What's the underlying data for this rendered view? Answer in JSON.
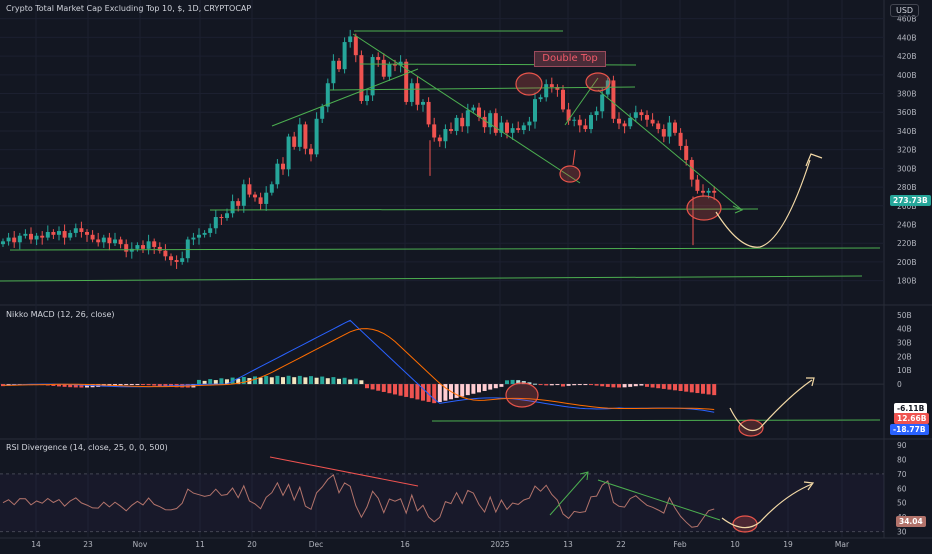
{
  "chart_title": "Crypto Total Market Cap Excluding Top 10, $, 1D, CRYPTOCAP",
  "currency": "USD",
  "annotation_text": "Double Top",
  "price_label": "273.73B",
  "colors": {
    "up": "#26a69a",
    "down": "#ef5350",
    "line": "#4caf50",
    "macd": "#2962ff",
    "signal": "#ff6d00",
    "rsi": "#b2736b",
    "bg": "#131722",
    "drawing": "#f3d9a6",
    "circle": "#e8544a"
  },
  "panes": {
    "macd_title": "Nikko MACD (12, 26, close)",
    "macd_labels": [
      "-6.11B",
      "12.66B",
      "-18.77B"
    ],
    "rsi_title": "RSI Divergence (14, close, 25, 0, 0, 500)",
    "rsi_label": "34.04"
  },
  "chart_data": {
    "type": "candlestick",
    "unit": "USD billions",
    "x_ticks": [
      "14",
      "23",
      "Nov",
      "11",
      "20",
      "Dec",
      "16",
      "2025",
      "13",
      "22",
      "Feb",
      "10",
      "19",
      "Mar"
    ],
    "y_ticks": [
      "460B",
      "440B",
      "420B",
      "400B",
      "380B",
      "360B",
      "340B",
      "320B",
      "300B",
      "280B",
      "260B",
      "240B",
      "220B",
      "200B",
      "180B"
    ],
    "ylim": [
      170,
      465
    ],
    "close": [
      222,
      226,
      221,
      228,
      230,
      224,
      228,
      226,
      232,
      229,
      233,
      226,
      231,
      236,
      232,
      229,
      224,
      221,
      226,
      220,
      224,
      219,
      211,
      214,
      218,
      214,
      222,
      216,
      212,
      206,
      202,
      200,
      204,
      224,
      226,
      229,
      231,
      236,
      248,
      247,
      252,
      265,
      260,
      283,
      272,
      269,
      262,
      274,
      283,
      305,
      299,
      334,
      323,
      347,
      321,
      315,
      353,
      366,
      391,
      415,
      406,
      435,
      441,
      421,
      372,
      378,
      419,
      416,
      398,
      411,
      410,
      414,
      371,
      391,
      368,
      371,
      347,
      333,
      329,
      342,
      340,
      354,
      345,
      362,
      365,
      355,
      344,
      359,
      338,
      349,
      338,
      343,
      341,
      346,
      350,
      374,
      376,
      390,
      387,
      384,
      363,
      351,
      352,
      346,
      342,
      357,
      361,
      379,
      394,
      353,
      348,
      345,
      354,
      360,
      357,
      352,
      348,
      342,
      334,
      349,
      338,
      324,
      309,
      288,
      276,
      274,
      276,
      274
    ],
    "macd_ylim": [
      -39,
      55
    ],
    "macd_ticks": [
      "50B",
      "40B",
      "30B",
      "20B",
      "10B",
      "0"
    ],
    "rsi_ylim": [
      27,
      92
    ],
    "rsi_ticks": [
      "90",
      "80",
      "70",
      "60",
      "50",
      "40",
      "30"
    ]
  }
}
